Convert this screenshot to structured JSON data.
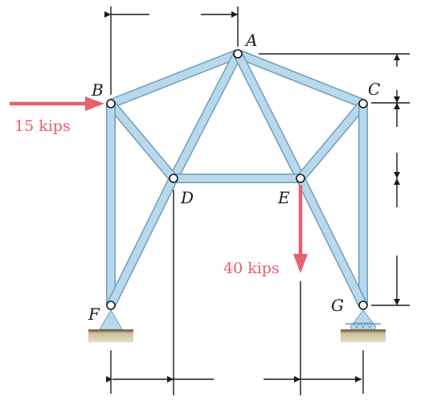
{
  "diagram": {
    "nodes": [
      {
        "id": "A",
        "label": "A"
      },
      {
        "id": "B",
        "label": "B"
      },
      {
        "id": "C",
        "label": "C"
      },
      {
        "id": "D",
        "label": "D"
      },
      {
        "id": "E",
        "label": "E"
      },
      {
        "id": "F",
        "label": "F"
      },
      {
        "id": "G",
        "label": "G"
      }
    ],
    "members": [
      [
        "A",
        "B"
      ],
      [
        "A",
        "C"
      ],
      [
        "A",
        "D"
      ],
      [
        "A",
        "E"
      ],
      [
        "B",
        "D"
      ],
      [
        "C",
        "E"
      ],
      [
        "B",
        "F"
      ],
      [
        "C",
        "G"
      ],
      [
        "D",
        "E"
      ],
      [
        "D",
        "F"
      ],
      [
        "E",
        "G"
      ]
    ],
    "supports": [
      {
        "node": "F",
        "type": "pin"
      },
      {
        "node": "G",
        "type": "roller"
      }
    ],
    "loads": [
      {
        "node": "B",
        "label": "15 kips",
        "direction": "right"
      },
      {
        "node": "E",
        "label": "40 kips",
        "direction": "down"
      }
    ],
    "colors": {
      "member_fill": "#b9d9ea",
      "member_edge": "#6c9fbf",
      "load": "#e8606e",
      "ground": "#cbbf9f"
    }
  }
}
